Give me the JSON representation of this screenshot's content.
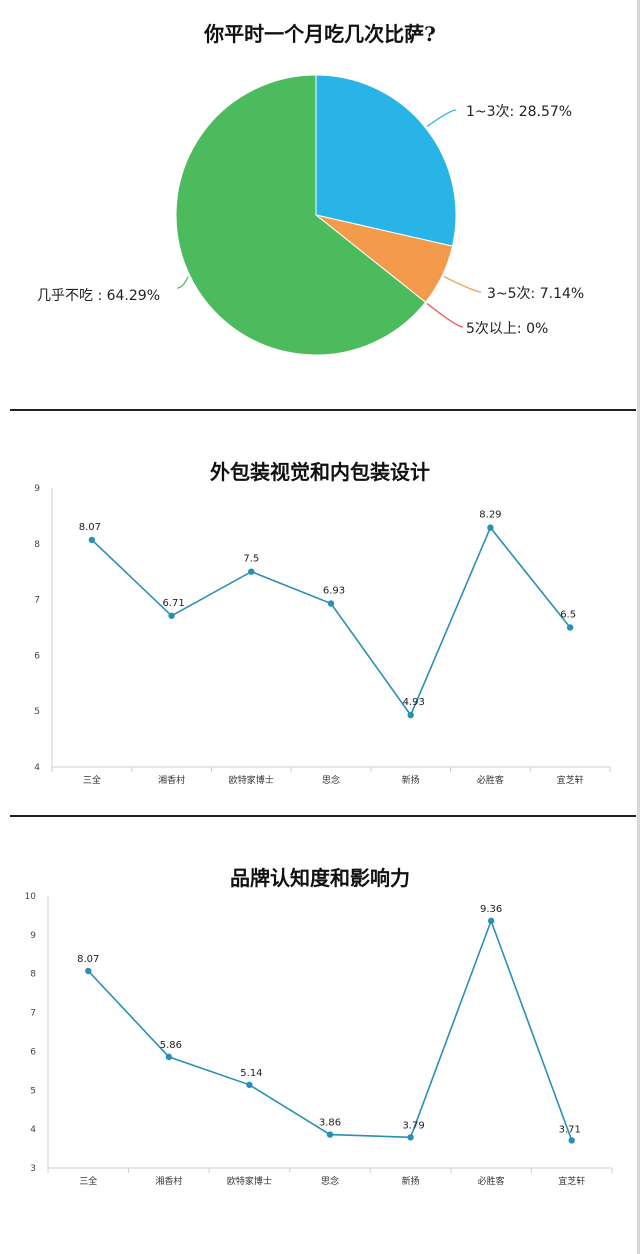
{
  "chart_data": [
    {
      "type": "pie",
      "title": "你平时一个月吃几次比萨?",
      "slices": [
        {
          "label": "1~3次",
          "value": 28.57,
          "display": "1~3次: 28.57%",
          "color": "#29b4e8"
        },
        {
          "label": "3~5次",
          "value": 7.14,
          "display": "3~5次: 7.14%",
          "color": "#f39a4c"
        },
        {
          "label": "5次以上",
          "value": 0,
          "display": "5次以上: 0%",
          "color": "#e8534d"
        },
        {
          "label": "几乎不吃",
          "value": 64.29,
          "display": "几乎不吃 : 64.29%",
          "color": "#4cbb5d"
        }
      ]
    },
    {
      "type": "line",
      "title": "外包装视觉和内包装设计",
      "categories": [
        "三全",
        "湘香村",
        "欧特家博士",
        "思念",
        "新扬",
        "必胜客",
        "宜芝轩"
      ],
      "values": [
        8.07,
        6.71,
        7.5,
        6.93,
        4.93,
        8.29,
        6.5
      ],
      "value_labels": [
        "8.07",
        "6.71",
        "7.5",
        "6.93",
        "4.93",
        "8.29",
        "6.5"
      ],
      "ylim": [
        4,
        9
      ],
      "yticks": [
        "4",
        "5",
        "6",
        "7",
        "8",
        "9"
      ],
      "color": "#2a8fb5",
      "grid": false
    },
    {
      "type": "line",
      "title": "品牌认知度和影响力",
      "categories": [
        "三全",
        "湘香村",
        "欧特家博士",
        "思念",
        "新扬",
        "必胜客",
        "宜芝轩"
      ],
      "values": [
        8.07,
        5.86,
        5.14,
        3.86,
        3.79,
        9.36,
        3.71
      ],
      "value_labels": [
        "8.07",
        "5.86",
        "5.14",
        "3.86",
        "3.79",
        "9.36",
        "3.71"
      ],
      "ylim": [
        3,
        10
      ],
      "yticks": [
        "3",
        "4",
        "5",
        "6",
        "7",
        "8",
        "9",
        "10"
      ],
      "color": "#2a8fb5",
      "grid": false
    }
  ]
}
